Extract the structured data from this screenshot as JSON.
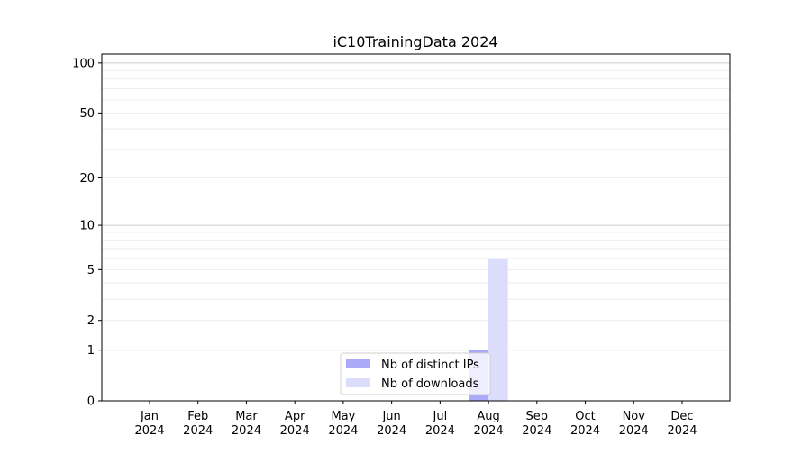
{
  "chart_data": {
    "type": "bar",
    "title": "iC10TrainingData 2024",
    "xlabel": "",
    "ylabel": "",
    "yscale": "log(1+y)",
    "ylim": [
      0,
      113
    ],
    "grid": true,
    "legend_position": "bottom-center",
    "categories": [
      "Jan\n2024",
      "Feb\n2024",
      "Mar\n2024",
      "Apr\n2024",
      "May\n2024",
      "Jun\n2024",
      "Jul\n2024",
      "Aug\n2024",
      "Sep\n2024",
      "Oct\n2024",
      "Nov\n2024",
      "Dec\n2024"
    ],
    "yticks": [
      0,
      1,
      2,
      5,
      10,
      20,
      50,
      100
    ],
    "series": [
      {
        "name": "Nb of distinct IPs",
        "color": "#aaaaf8",
        "values": [
          0,
          0,
          0,
          0,
          0,
          0,
          0,
          1,
          0,
          0,
          0,
          0
        ]
      },
      {
        "name": "Nb of downloads",
        "color": "#dcdcfc",
        "values": [
          0,
          0,
          0,
          0,
          0,
          0,
          0,
          6,
          0,
          0,
          0,
          0
        ]
      }
    ]
  }
}
